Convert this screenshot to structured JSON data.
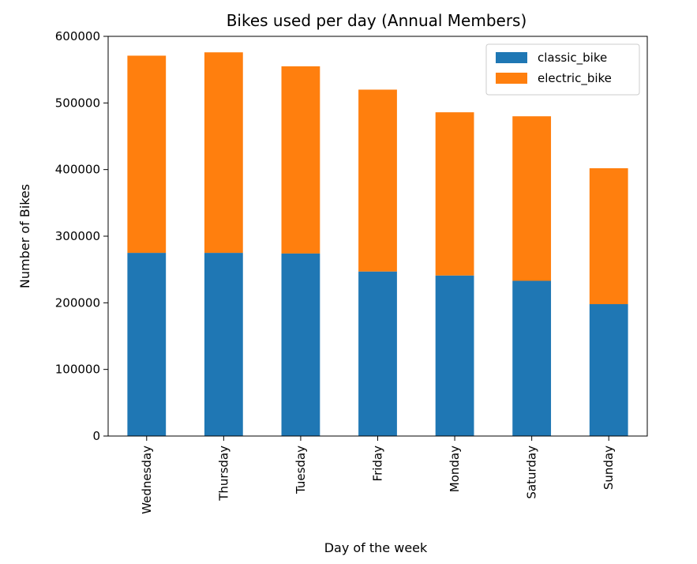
{
  "chart_data": {
    "type": "bar",
    "stacked": true,
    "title": "Bikes used per day (Annual Members)",
    "xlabel": "Day of the week",
    "ylabel": "Number of Bikes",
    "categories": [
      "Wednesday",
      "Thursday",
      "Tuesday",
      "Friday",
      "Monday",
      "Saturday",
      "Sunday"
    ],
    "series": [
      {
        "name": "classic_bike",
        "color": "#1f77b4",
        "values": [
          275000,
          275000,
          274000,
          247000,
          241000,
          233000,
          198000
        ]
      },
      {
        "name": "electric_bike",
        "color": "#ff7f0e",
        "values": [
          296000,
          301000,
          281000,
          273000,
          245000,
          247000,
          204000
        ]
      }
    ],
    "ylim": [
      0,
      600000
    ],
    "yticks": [
      0,
      100000,
      200000,
      300000,
      400000,
      500000,
      600000
    ],
    "ytick_labels": [
      "0",
      "100000",
      "200000",
      "300000",
      "400000",
      "500000",
      "600000"
    ],
    "grid": false,
    "legend": {
      "position": "top-right"
    }
  }
}
